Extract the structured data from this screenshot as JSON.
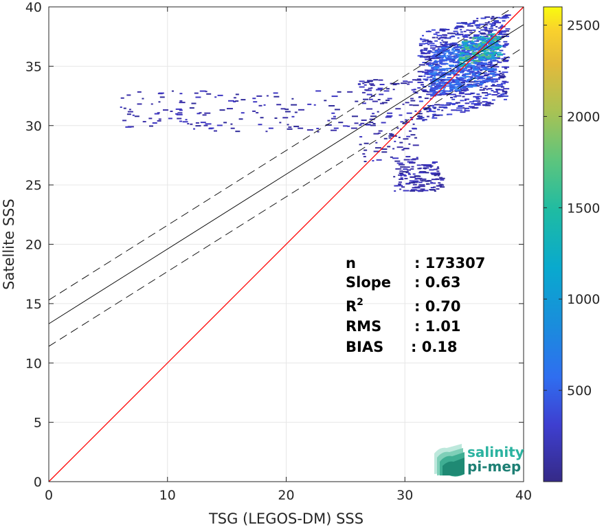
{
  "chart_data": {
    "type": "heatmap",
    "xlabel": "TSG (LEGOS-DM) SSS",
    "ylabel": "Satellite SSS",
    "xlim": [
      0,
      40
    ],
    "ylim": [
      0,
      40
    ],
    "x_ticks": [
      "0",
      "10",
      "20",
      "30",
      "40"
    ],
    "y_ticks": [
      "0",
      "5",
      "10",
      "15",
      "20",
      "25",
      "30",
      "35",
      "40"
    ],
    "grid": true,
    "colorbar": {
      "range": [
        0,
        2600
      ],
      "ticks": [
        "500",
        "1000",
        "1500",
        "2000",
        "2500"
      ],
      "tick_values": [
        500,
        1000,
        1500,
        2000,
        2500
      ],
      "colormap": "parula"
    },
    "lines": [
      {
        "role": "identity",
        "color": "#ff0000",
        "slope": 1.0,
        "intercept": 0.0
      },
      {
        "role": "regression",
        "color": "#000000",
        "style": "solid",
        "slope": 0.63,
        "intercept": 13.3
      },
      {
        "role": "regression-upper",
        "color": "#000000",
        "style": "dashed",
        "slope": 0.63,
        "intercept": 15.3
      },
      {
        "role": "regression-lower",
        "color": "#000000",
        "style": "dashed",
        "slope": 0.63,
        "intercept": 11.4
      }
    ],
    "density_regions": [
      {
        "x": [
          31,
          38.5
        ],
        "y": [
          30,
          39.8
        ],
        "level": "low"
      },
      {
        "x": [
          32,
          37.5
        ],
        "y": [
          32.5,
          37.5
        ],
        "level": "medium"
      },
      {
        "x": [
          34.5,
          37.8
        ],
        "y": [
          35,
          37.8
        ],
        "level": "high"
      },
      {
        "x": [
          26,
          31
        ],
        "y": [
          27,
          34
        ],
        "level": "sparse"
      },
      {
        "x": [
          6,
          26
        ],
        "y": [
          29.5,
          33
        ],
        "level": "sparse"
      },
      {
        "x": [
          29,
          33
        ],
        "y": [
          24.5,
          27
        ],
        "level": "sparse"
      }
    ],
    "stats": [
      {
        "label": "n",
        "value": ": 173307"
      },
      {
        "label": "Slope",
        "value": ": 0.63"
      },
      {
        "label": "R",
        "sup": "2",
        "value": ": 0.70"
      },
      {
        "label": "RMS",
        "value": ": 1.01"
      },
      {
        "label": "BIAS",
        "value": ": 0.18"
      }
    ]
  },
  "logo": {
    "line1": "salinity",
    "line2": "pi-mep",
    "colors": {
      "text1": "#2bb3a0",
      "text2": "#1d7f74",
      "waves": [
        "#bde8dc",
        "#7fcfb8",
        "#3fae93",
        "#1f8a74"
      ]
    }
  },
  "colors": {
    "axis": "#262626",
    "grid": "#e6e6e6",
    "identity": "#ff0000",
    "regression": "#000000"
  }
}
